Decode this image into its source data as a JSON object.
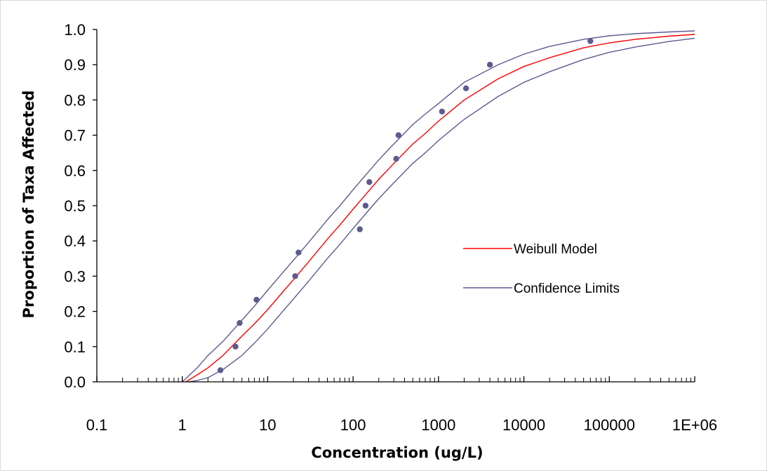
{
  "chart_data": {
    "type": "scatter",
    "title": "",
    "xlabel": "Concentration (ug/L)",
    "ylabel": "Proportion of Taxa Affected",
    "x_scale": "log",
    "xlim": [
      0.1,
      1000000
    ],
    "ylim": [
      0.0,
      1.0
    ],
    "x_tick_values": [
      0.1,
      1,
      10,
      100,
      1000,
      10000,
      100000,
      1000000
    ],
    "x_tick_labels": [
      "0.1",
      "1",
      "10",
      "100",
      "1000",
      "10000",
      "100000",
      "1E+06"
    ],
    "y_tick_values": [
      0.0,
      0.1,
      0.2,
      0.3,
      0.4,
      0.5,
      0.6,
      0.7,
      0.8,
      0.9,
      1.0
    ],
    "y_tick_labels": [
      "0.0",
      "0.1",
      "0.2",
      "0.3",
      "0.4",
      "0.5",
      "0.6",
      "0.7",
      "0.8",
      "0.9",
      "1.0"
    ],
    "grid": false,
    "legend_position": "right",
    "points": {
      "color": "#5b5b8f",
      "x": [
        2.8,
        4.2,
        4.7,
        7.4,
        21,
        23,
        120,
        140,
        155,
        320,
        340,
        1100,
        2100,
        4000,
        60000
      ],
      "y": [
        0.033,
        0.1,
        0.167,
        0.233,
        0.3,
        0.367,
        0.433,
        0.5,
        0.567,
        0.633,
        0.7,
        0.767,
        0.833,
        0.9,
        0.967
      ]
    },
    "series": [
      {
        "name": "Weibull Model",
        "color": "#ff0000",
        "x": [
          1.1,
          1.5,
          2,
          3,
          5,
          7,
          10,
          15,
          20,
          30,
          50,
          70,
          100,
          150,
          200,
          300,
          500,
          700,
          1000,
          2000,
          5000,
          10000,
          20000,
          50000,
          100000,
          200000,
          500000,
          1000000
        ],
        "y": [
          0.0,
          0.02,
          0.04,
          0.075,
          0.13,
          0.165,
          0.205,
          0.255,
          0.29,
          0.34,
          0.405,
          0.445,
          0.49,
          0.54,
          0.575,
          0.62,
          0.675,
          0.705,
          0.74,
          0.8,
          0.86,
          0.895,
          0.92,
          0.948,
          0.962,
          0.972,
          0.981,
          0.986
        ]
      },
      {
        "name": "Confidence Limits",
        "color": "#5b5b8f",
        "x": [
          1.0,
          1.5,
          2,
          3,
          5,
          7,
          10,
          15,
          20,
          30,
          50,
          70,
          100,
          150,
          200,
          300,
          500,
          700,
          1000,
          2000,
          5000,
          10000,
          20000,
          50000,
          100000,
          200000,
          500000,
          1000000
        ],
        "y": [
          0.0,
          0.04,
          0.075,
          0.115,
          0.175,
          0.215,
          0.26,
          0.31,
          0.345,
          0.395,
          0.46,
          0.5,
          0.545,
          0.595,
          0.63,
          0.675,
          0.73,
          0.76,
          0.79,
          0.85,
          0.9,
          0.93,
          0.952,
          0.972,
          0.982,
          0.988,
          0.993,
          0.996
        ]
      },
      {
        "name": "",
        "color": "#5b5b8f",
        "x": [
          1.2,
          1.5,
          2,
          3,
          5,
          7,
          10,
          15,
          20,
          30,
          50,
          70,
          100,
          150,
          200,
          300,
          500,
          700,
          1000,
          2000,
          5000,
          10000,
          20000,
          50000,
          100000,
          200000,
          500000,
          1000000
        ],
        "y": [
          0.0,
          0.004,
          0.012,
          0.035,
          0.075,
          0.11,
          0.15,
          0.2,
          0.235,
          0.285,
          0.35,
          0.39,
          0.435,
          0.485,
          0.52,
          0.565,
          0.62,
          0.65,
          0.685,
          0.745,
          0.81,
          0.85,
          0.88,
          0.915,
          0.935,
          0.95,
          0.966,
          0.975
        ]
      }
    ]
  }
}
